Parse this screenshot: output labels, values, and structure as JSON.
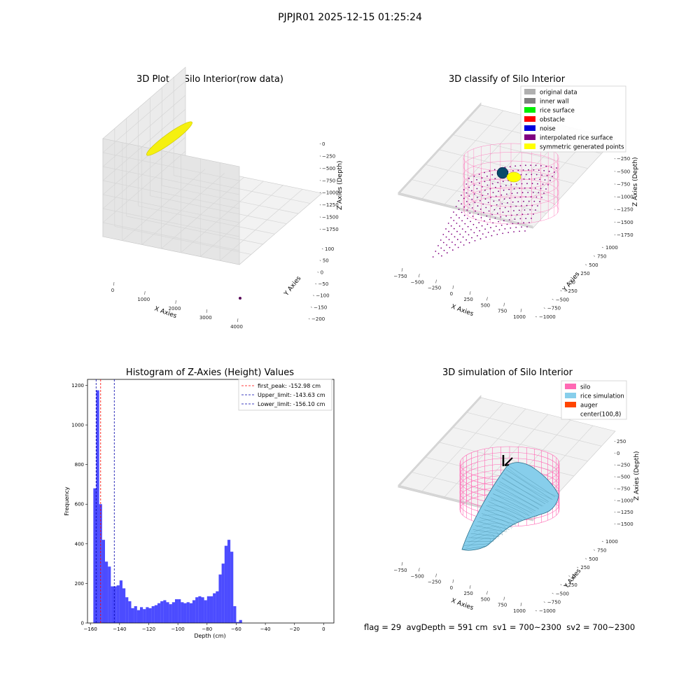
{
  "suptitle": "PJPJR01 2025-12-15 01:25:24",
  "footer": "flag = 29  avgDepth = 591 cm  sv1 = 700~2300  sv2 = 700~2300",
  "colors": {
    "raw_points": "#f5f010",
    "original_data": "#b0b0b0",
    "inner_wall": "#808080",
    "rice_surface": "#00ee00",
    "obstacle": "#ff0000",
    "noise": "#0000dd",
    "interpolated_rice_surface": "#800080",
    "symmetric_generated_points": "#ffff00",
    "silo": "#ff69b4",
    "rice_simulation": "#87ceeb",
    "auger": "#ff4500",
    "histogram": "#0000ff"
  },
  "chart_data": [
    {
      "type": "scatter",
      "title": "3D Plot of Silo Interior(row data)",
      "projection": "3d",
      "xlabel": "X Axies",
      "ylabel": "Y Axies",
      "zlabel": "Z Axies (Depth)",
      "x_ticks": [
        "0",
        "1000",
        "2000",
        "3000",
        "4000"
      ],
      "y_ticks": [
        "100",
        "50",
        "0",
        "−50",
        "−100",
        "−150",
        "−200"
      ],
      "z_ticks": [
        "0",
        "−250",
        "−500",
        "−750",
        "−1000",
        "−1250",
        "−1500",
        "−1750"
      ],
      "grid": true
    },
    {
      "type": "scatter",
      "title": "3D classify of Silo Interior",
      "projection": "3d",
      "xlabel": "X Axies",
      "ylabel": "Y Axies",
      "zlabel": "Z Axies (Depth)",
      "x_ticks": [
        "−750",
        "−500",
        "−250",
        "0",
        "250",
        "500",
        "750",
        "1000"
      ],
      "y_ticks": [
        "1000",
        "750",
        "500",
        "250",
        "0",
        "−250",
        "−500",
        "−750",
        "−1000"
      ],
      "z_ticks": [
        "0",
        "−250",
        "−500",
        "−750",
        "−1000",
        "−1250",
        "−1500",
        "−1750"
      ],
      "legend": [
        "original data",
        "inner wall",
        "rice surface",
        "obstacle",
        "noise",
        "interpolated rice surface",
        "symmetric generated points"
      ],
      "legend_position": "top-right",
      "grid": true
    },
    {
      "type": "bar",
      "title": "Histogram of Z-Axies (Height) Values",
      "xlabel": "Depth (cm)",
      "ylabel": "Frequency",
      "xlim": [
        -162,
        7
      ],
      "ylim": [
        0,
        1230
      ],
      "x_ticks": [
        -160,
        -140,
        -120,
        -100,
        -80,
        -60,
        -40,
        -20,
        0
      ],
      "y_ticks": [
        0,
        200,
        400,
        600,
        800,
        1000,
        1200
      ],
      "bin_start": -158,
      "bin_width": 2.0,
      "counts": [
        680,
        1175,
        600,
        420,
        310,
        285,
        185,
        185,
        190,
        215,
        175,
        130,
        110,
        75,
        85,
        65,
        80,
        70,
        80,
        75,
        85,
        90,
        100,
        110,
        115,
        105,
        95,
        105,
        120,
        120,
        105,
        100,
        105,
        100,
        115,
        130,
        135,
        130,
        115,
        135,
        135,
        150,
        160,
        245,
        300,
        390,
        420,
        360,
        85,
        5,
        15
      ],
      "lines": [
        {
          "label": "first_peak: -152.98 cm",
          "x": -152.98,
          "color": "#ff0000"
        },
        {
          "label": "Upper_limit: -143.63 cm",
          "x": -143.63,
          "color": "#0000aa"
        },
        {
          "label": "Lower_limit: -156.10 cm",
          "x": -156.1,
          "color": "#0000aa"
        }
      ],
      "legend_position": "top-right",
      "grid": false
    },
    {
      "type": "area",
      "title": "3D simulation of Silo Interior",
      "projection": "3d",
      "xlabel": "X Axies",
      "ylabel": "Y Axies",
      "zlabel": "Z Axies (Depth)",
      "x_ticks": [
        "−750",
        "−500",
        "−250",
        "0",
        "250",
        "500",
        "750",
        "1000"
      ],
      "y_ticks": [
        "1000",
        "750",
        "500",
        "250",
        "0",
        "−250",
        "−500",
        "−750",
        "−1000"
      ],
      "z_ticks": [
        "250",
        "0",
        "−250",
        "−500",
        "−750",
        "−1000",
        "−1250",
        "−1500"
      ],
      "legend": [
        "silo",
        "rice simulation",
        "auger",
        "center(100,8)"
      ],
      "legend_position": "top-right",
      "grid": true
    }
  ]
}
